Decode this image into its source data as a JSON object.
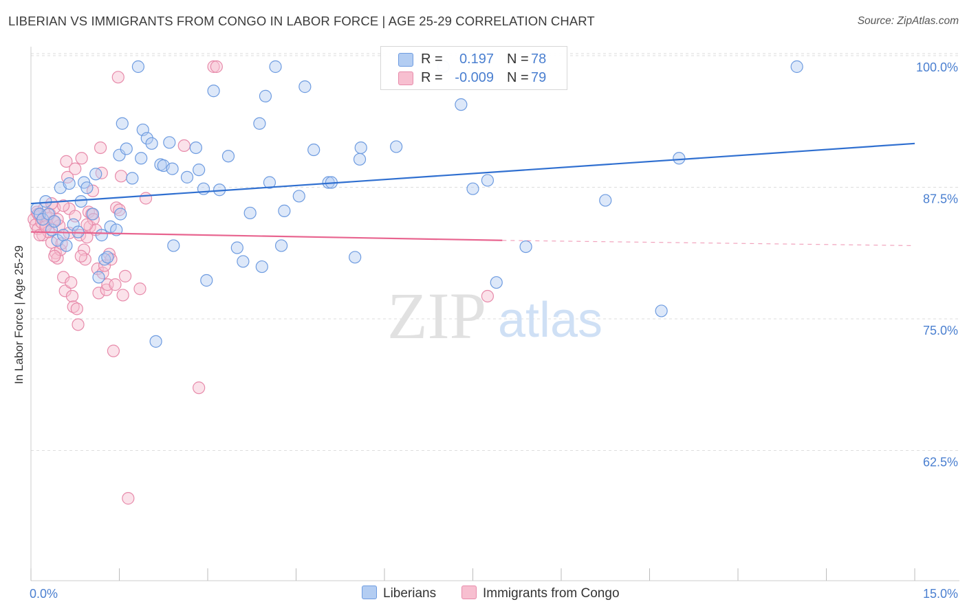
{
  "header": {
    "title": "LIBERIAN VS IMMIGRANTS FROM CONGO IN LABOR FORCE | AGE 25-29 CORRELATION CHART",
    "source": "Source: ZipAtlas.com"
  },
  "watermark": {
    "zip": "ZIP",
    "atlas": "atlas"
  },
  "legend": {
    "liberians": {
      "r_label": "R =",
      "r_value": "0.197",
      "n_label": "N =",
      "n_value": "78"
    },
    "congo": {
      "r_label": "R =",
      "r_value": "-0.009",
      "n_label": "N =",
      "n_value": "79"
    }
  },
  "colors": {
    "blue_fill": "#b3cdf2",
    "blue_stroke": "#6d9be0",
    "blue_line": "#2f6fd0",
    "pink_fill": "#f7bfd0",
    "pink_stroke": "#e78aaa",
    "pink_line": "#e8648f",
    "grid": "#dddddd",
    "axis_tick_text": "#4a7fd0"
  },
  "chart_data": {
    "type": "scatter",
    "xlabel": "",
    "ylabel": "In Labor Force | Age 25-29",
    "xlim": [
      0,
      15
    ],
    "ylim": [
      50,
      102.5
    ],
    "x_ticks_labels": [
      "0.0%",
      "15.0%"
    ],
    "y_ticks": [
      {
        "value": 100,
        "label": "100.0%"
      },
      {
        "value": 87.5,
        "label": "87.5%"
      },
      {
        "value": 75,
        "label": "75.0%"
      },
      {
        "value": 62.5,
        "label": "62.5%"
      }
    ],
    "grid": true,
    "legend_position": "bottom",
    "series": [
      {
        "name": "Liberians",
        "color": "#6d9be0",
        "trend": {
          "x": [
            0,
            15
          ],
          "y": [
            87.0,
            92.7
          ],
          "dashed_from": null
        },
        "points": [
          [
            0.1,
            86.5
          ],
          [
            0.15,
            86.0
          ],
          [
            0.2,
            85.5
          ],
          [
            0.25,
            87.2
          ],
          [
            0.3,
            86.0
          ],
          [
            0.35,
            84.5
          ],
          [
            0.4,
            85.3
          ],
          [
            0.45,
            83.5
          ],
          [
            0.5,
            88.5
          ],
          [
            0.55,
            84.0
          ],
          [
            0.65,
            88.9
          ],
          [
            0.72,
            85.0
          ],
          [
            0.8,
            84.3
          ],
          [
            0.85,
            87.2
          ],
          [
            0.9,
            89.0
          ],
          [
            0.95,
            88.5
          ],
          [
            1.05,
            86.0
          ],
          [
            1.1,
            89.8
          ],
          [
            1.2,
            84.0
          ],
          [
            1.25,
            81.7
          ],
          [
            1.3,
            81.9
          ],
          [
            1.35,
            84.8
          ],
          [
            1.45,
            84.5
          ],
          [
            1.5,
            91.6
          ],
          [
            1.52,
            86.0
          ],
          [
            1.55,
            94.6
          ],
          [
            1.62,
            92.2
          ],
          [
            1.72,
            89.4
          ],
          [
            1.82,
            100.0
          ],
          [
            1.87,
            91.3
          ],
          [
            1.9,
            94.0
          ],
          [
            1.97,
            93.2
          ],
          [
            2.05,
            92.7
          ],
          [
            2.12,
            73.9
          ],
          [
            2.2,
            90.7
          ],
          [
            2.25,
            90.6
          ],
          [
            2.35,
            92.8
          ],
          [
            2.4,
            90.3
          ],
          [
            2.42,
            83.0
          ],
          [
            2.65,
            89.5
          ],
          [
            2.8,
            92.3
          ],
          [
            2.85,
            90.2
          ],
          [
            2.93,
            88.4
          ],
          [
            2.98,
            79.7
          ],
          [
            3.1,
            97.7
          ],
          [
            3.2,
            88.3
          ],
          [
            3.35,
            91.5
          ],
          [
            3.5,
            82.8
          ],
          [
            3.6,
            81.5
          ],
          [
            3.72,
            86.1
          ],
          [
            3.88,
            94.6
          ],
          [
            3.92,
            81.0
          ],
          [
            3.98,
            97.2
          ],
          [
            4.05,
            89.0
          ],
          [
            4.15,
            100.0
          ],
          [
            4.25,
            83.0
          ],
          [
            4.3,
            86.3
          ],
          [
            4.55,
            87.7
          ],
          [
            4.65,
            98.1
          ],
          [
            4.8,
            92.1
          ],
          [
            5.05,
            89.0
          ],
          [
            5.1,
            89.0
          ],
          [
            5.5,
            81.9
          ],
          [
            5.58,
            91.2
          ],
          [
            5.6,
            92.3
          ],
          [
            6.2,
            92.4
          ],
          [
            7.0,
            100.0
          ],
          [
            7.3,
            96.4
          ],
          [
            7.5,
            88.4
          ],
          [
            7.75,
            89.2
          ],
          [
            7.9,
            79.5
          ],
          [
            8.4,
            82.9
          ],
          [
            9.75,
            87.3
          ],
          [
            10.7,
            76.8
          ],
          [
            11.0,
            91.3
          ],
          [
            13.0,
            100.0
          ],
          [
            1.15,
            80.0
          ],
          [
            0.6,
            83.0
          ]
        ]
      },
      {
        "name": "Immigrants from Congo",
        "color": "#e78aaa",
        "trend": {
          "x": [
            0,
            8.0
          ],
          "y": [
            84.3,
            83.5
          ],
          "dashed_to": [
            15,
            83.0
          ]
        },
        "points": [
          [
            0.05,
            85.5
          ],
          [
            0.08,
            85.0
          ],
          [
            0.1,
            86.2
          ],
          [
            0.12,
            84.6
          ],
          [
            0.15,
            85.8
          ],
          [
            0.18,
            85.2
          ],
          [
            0.2,
            84.0
          ],
          [
            0.22,
            86.5
          ],
          [
            0.25,
            85.0
          ],
          [
            0.28,
            85.6
          ],
          [
            0.3,
            84.3
          ],
          [
            0.32,
            86.0
          ],
          [
            0.35,
            83.3
          ],
          [
            0.38,
            85.3
          ],
          [
            0.4,
            86.6
          ],
          [
            0.42,
            82.3
          ],
          [
            0.45,
            81.8
          ],
          [
            0.48,
            84.9
          ],
          [
            0.5,
            82.6
          ],
          [
            0.52,
            83.2
          ],
          [
            0.55,
            80.0
          ],
          [
            0.58,
            78.7
          ],
          [
            0.6,
            91.0
          ],
          [
            0.62,
            89.5
          ],
          [
            0.65,
            86.5
          ],
          [
            0.68,
            79.5
          ],
          [
            0.7,
            78.2
          ],
          [
            0.72,
            77.2
          ],
          [
            0.75,
            90.3
          ],
          [
            0.78,
            77.0
          ],
          [
            0.8,
            75.5
          ],
          [
            0.83,
            84.0
          ],
          [
            0.86,
            91.3
          ],
          [
            0.9,
            82.6
          ],
          [
            0.92,
            81.7
          ],
          [
            0.95,
            83.8
          ],
          [
            0.98,
            86.2
          ],
          [
            1.0,
            84.8
          ],
          [
            1.03,
            86.0
          ],
          [
            1.06,
            85.5
          ],
          [
            1.1,
            84.5
          ],
          [
            1.13,
            80.8
          ],
          [
            1.15,
            78.5
          ],
          [
            1.18,
            92.3
          ],
          [
            1.2,
            89.9
          ],
          [
            1.22,
            80.4
          ],
          [
            1.25,
            81.1
          ],
          [
            1.28,
            78.8
          ],
          [
            1.3,
            79.3
          ],
          [
            1.33,
            82.2
          ],
          [
            1.36,
            81.7
          ],
          [
            1.4,
            73.0
          ],
          [
            1.43,
            79.3
          ],
          [
            1.45,
            86.6
          ],
          [
            1.48,
            99.0
          ],
          [
            1.5,
            86.4
          ],
          [
            1.53,
            89.6
          ],
          [
            1.56,
            78.3
          ],
          [
            1.6,
            80.1
          ],
          [
            1.65,
            59.0
          ],
          [
            1.85,
            78.9
          ],
          [
            1.95,
            87.5
          ],
          [
            2.6,
            92.5
          ],
          [
            2.85,
            69.5
          ],
          [
            3.1,
            100.0
          ],
          [
            3.15,
            100.0
          ],
          [
            7.75,
            78.2
          ],
          [
            0.15,
            84.0
          ],
          [
            0.35,
            87.0
          ],
          [
            0.45,
            85.5
          ],
          [
            0.55,
            86.8
          ],
          [
            0.65,
            84.2
          ],
          [
            0.75,
            85.8
          ],
          [
            0.85,
            82.0
          ],
          [
            0.95,
            85.0
          ],
          [
            1.05,
            88.2
          ],
          [
            0.25,
            84.8
          ],
          [
            0.4,
            82.0
          ],
          [
            0.12,
            86.0
          ]
        ]
      }
    ]
  },
  "bottom_legend": {
    "liberians": "Liberians",
    "congo": "Immigrants from Congo"
  }
}
